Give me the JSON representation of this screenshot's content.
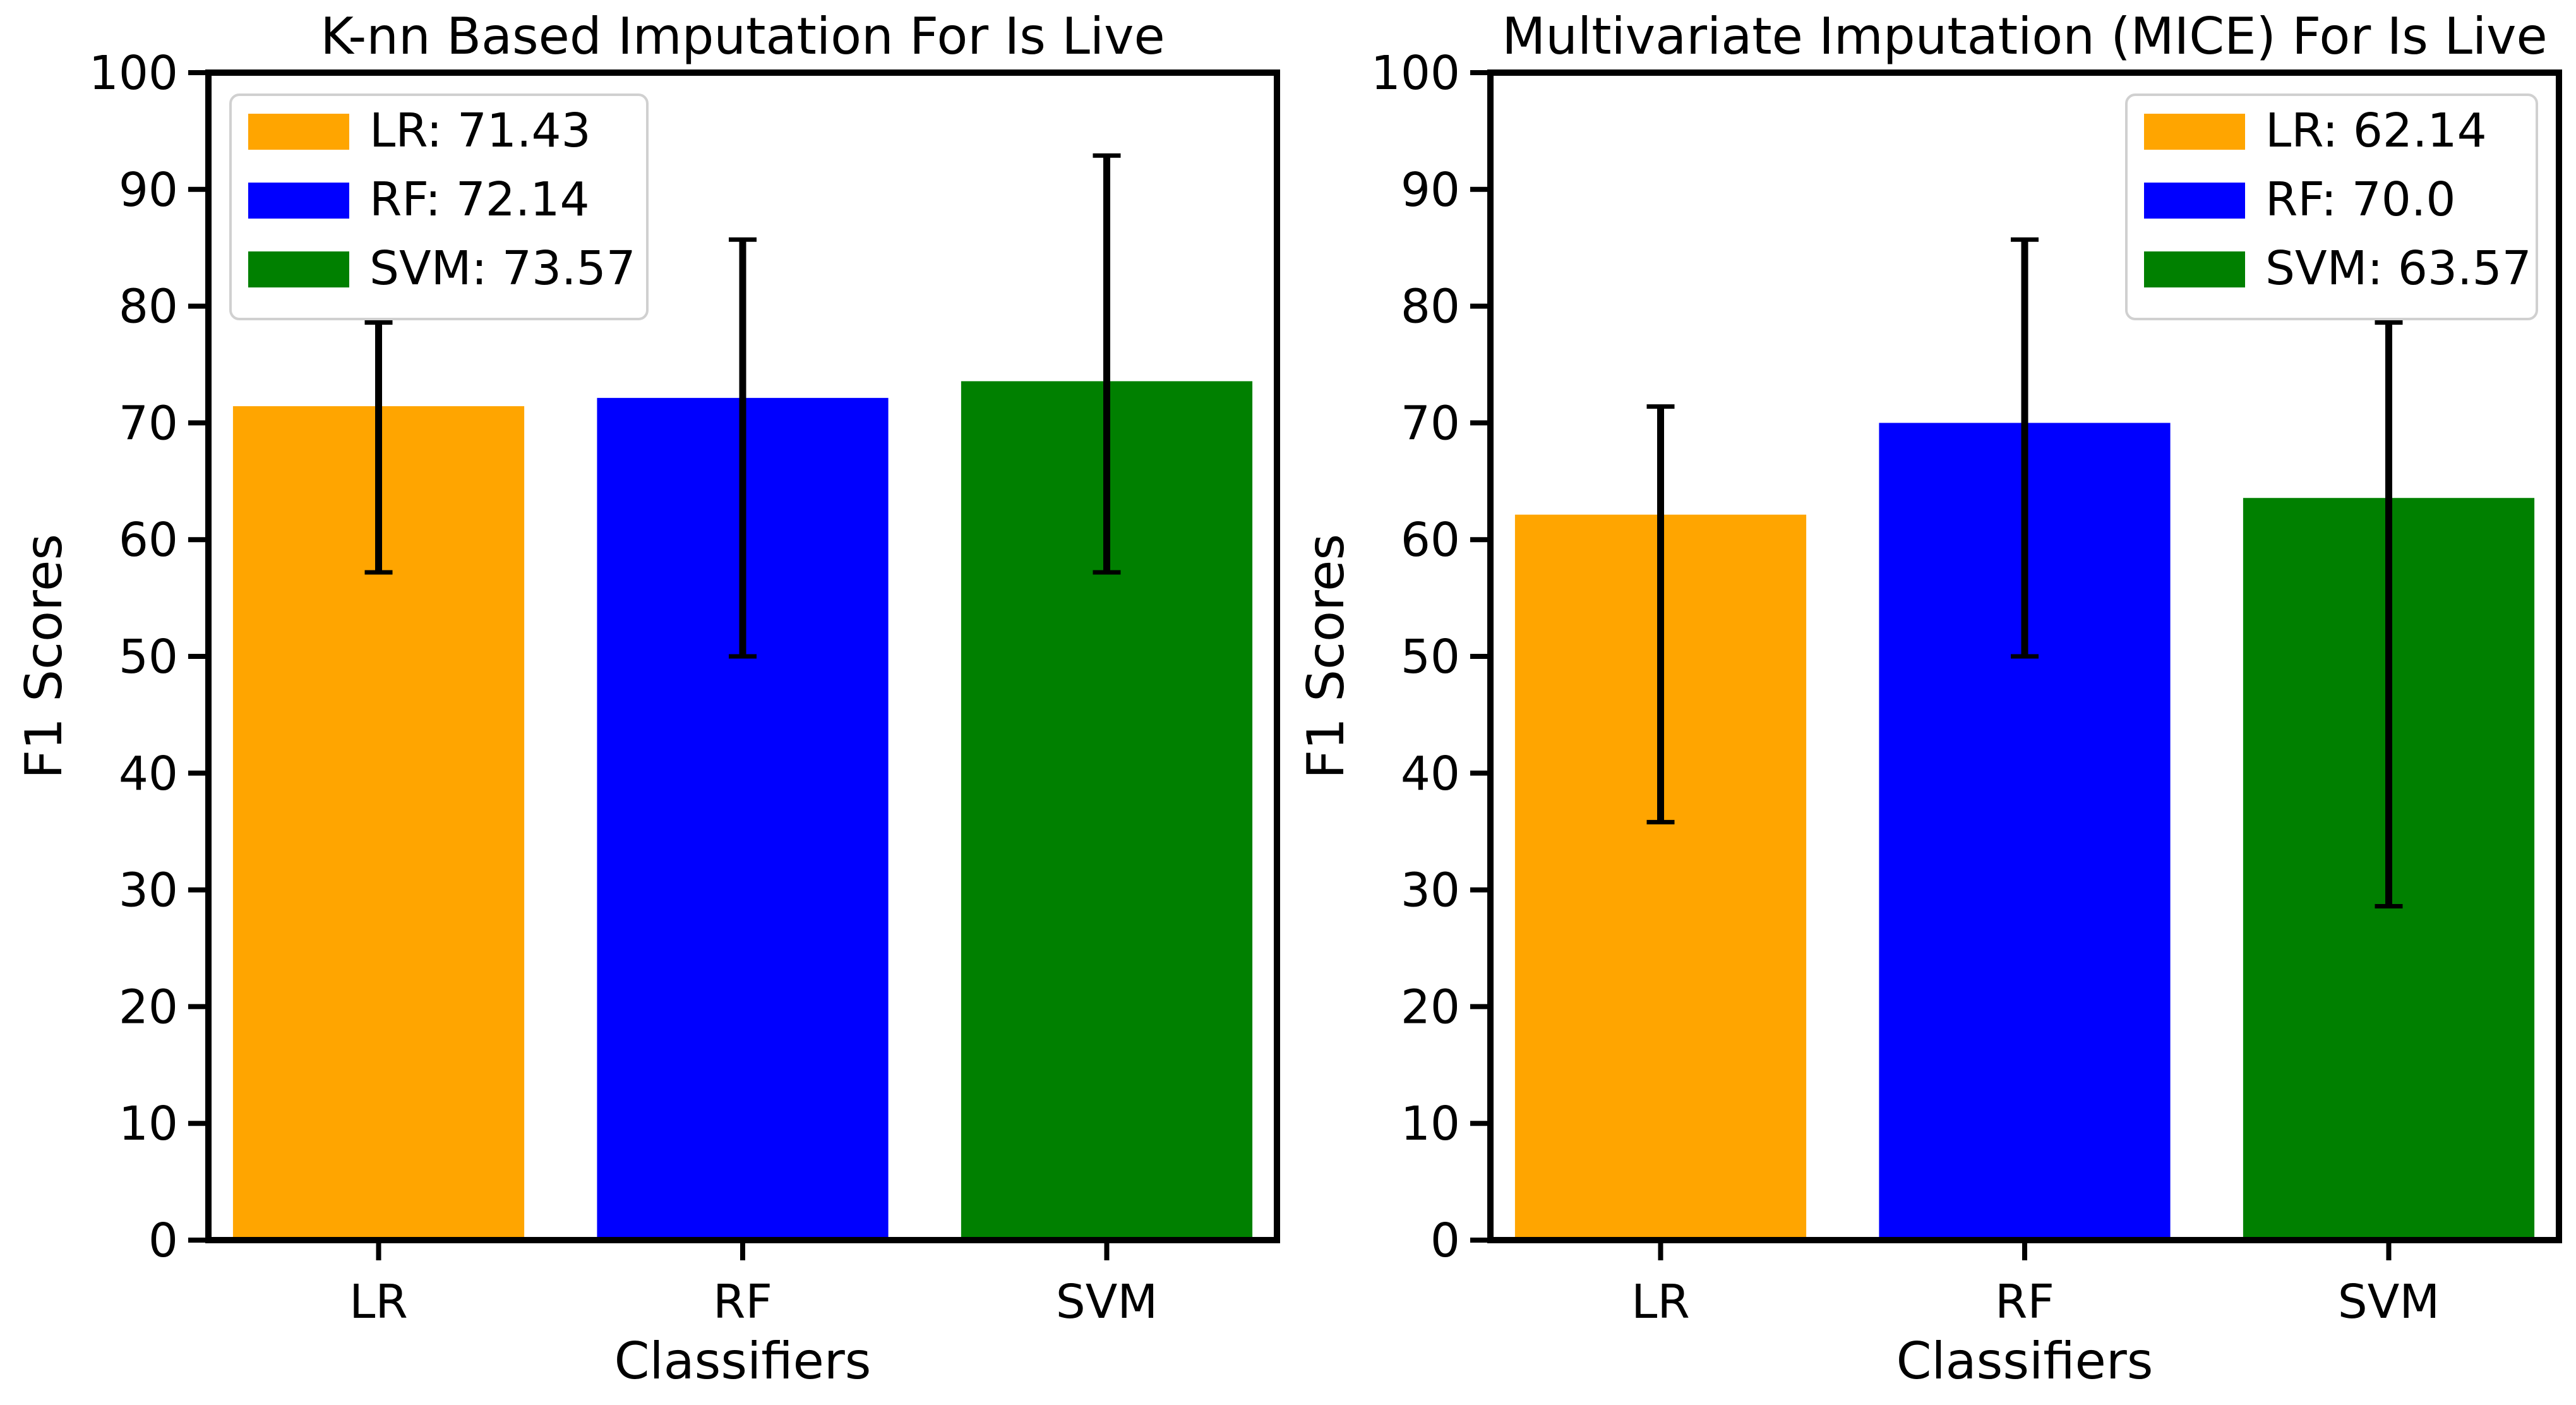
{
  "chart_data": [
    {
      "type": "bar",
      "title": "K-nn Based Imputation For Is Live",
      "xlabel": "Classifiers",
      "ylabel": "F1 Scores",
      "ylim": [
        0,
        100
      ],
      "yticks": [
        0,
        10,
        20,
        30,
        40,
        50,
        60,
        70,
        80,
        90,
        100
      ],
      "categories": [
        "LR",
        "RF",
        "SVM"
      ],
      "values": [
        71.43,
        72.14,
        73.57
      ],
      "error_low": [
        57.2,
        50.0,
        57.2
      ],
      "error_high": [
        78.6,
        85.7,
        92.9
      ],
      "colors": [
        "#FFA500",
        "#0000FF",
        "#008000"
      ],
      "grid": false,
      "legend_position": "top-left",
      "legend": [
        "LR: 71.43",
        "RF: 72.14",
        "SVM: 73.57"
      ]
    },
    {
      "type": "bar",
      "title": "Multivariate Imputation (MICE) For Is Live",
      "xlabel": "Classifiers",
      "ylabel": "F1 Scores",
      "ylim": [
        0,
        100
      ],
      "yticks": [
        0,
        10,
        20,
        30,
        40,
        50,
        60,
        70,
        80,
        90,
        100
      ],
      "categories": [
        "LR",
        "RF",
        "SVM"
      ],
      "values": [
        62.14,
        70.0,
        63.57
      ],
      "error_low": [
        35.8,
        50.0,
        28.6
      ],
      "error_high": [
        71.4,
        85.7,
        78.6
      ],
      "colors": [
        "#FFA500",
        "#0000FF",
        "#008000"
      ],
      "grid": false,
      "legend_position": "top-right",
      "legend": [
        "LR: 62.14",
        "RF: 70.0",
        "SVM: 63.57"
      ]
    }
  ]
}
